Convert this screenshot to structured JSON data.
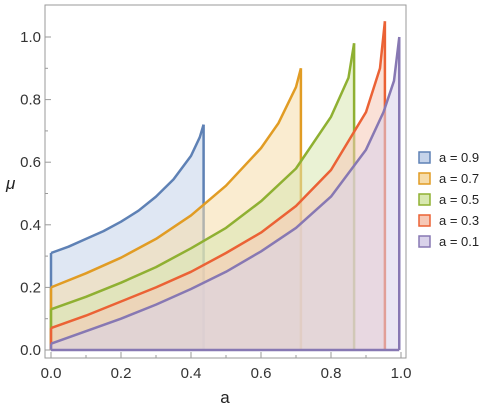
{
  "chart_data": {
    "type": "area",
    "xlabel": "a",
    "ylabel": "μ",
    "xlim": [
      0.0,
      1.0
    ],
    "ylim": [
      0.0,
      1.0
    ],
    "x_ticks": [
      "0.0",
      "0.2",
      "0.4",
      "0.6",
      "0.8",
      "1.0"
    ],
    "y_ticks": [
      "0.0",
      "0.2",
      "0.4",
      "0.6",
      "0.8",
      "1.0"
    ],
    "grid": false,
    "legend_position": "right",
    "series": [
      {
        "name": "a = 0.9",
        "color": "#5e81b5",
        "fill": "#c5d3ea",
        "upper": [
          [
            0.0,
            0.31
          ],
          [
            0.05,
            0.33
          ],
          [
            0.1,
            0.355
          ],
          [
            0.15,
            0.38
          ],
          [
            0.2,
            0.41
          ],
          [
            0.25,
            0.445
          ],
          [
            0.3,
            0.49
          ],
          [
            0.35,
            0.545
          ],
          [
            0.4,
            0.62
          ],
          [
            0.425,
            0.68
          ],
          [
            0.436,
            0.72
          ]
        ],
        "lower": [
          [
            0.0,
            0.0
          ],
          [
            0.436,
            0.0
          ]
        ]
      },
      {
        "name": "a = 0.7",
        "color": "#e19c24",
        "fill": "#f6dcaa",
        "upper": [
          [
            0.0,
            0.2
          ],
          [
            0.1,
            0.245
          ],
          [
            0.2,
            0.295
          ],
          [
            0.3,
            0.355
          ],
          [
            0.4,
            0.43
          ],
          [
            0.5,
            0.525
          ],
          [
            0.6,
            0.645
          ],
          [
            0.65,
            0.725
          ],
          [
            0.7,
            0.84
          ],
          [
            0.714,
            0.9
          ]
        ],
        "lower": [
          [
            0.0,
            0.0
          ],
          [
            0.714,
            0.0
          ]
        ]
      },
      {
        "name": "a = 0.5",
        "color": "#8fb032",
        "fill": "#d8e8b0",
        "upper": [
          [
            0.0,
            0.13
          ],
          [
            0.1,
            0.17
          ],
          [
            0.2,
            0.215
          ],
          [
            0.3,
            0.265
          ],
          [
            0.4,
            0.325
          ],
          [
            0.5,
            0.39
          ],
          [
            0.6,
            0.475
          ],
          [
            0.7,
            0.58
          ],
          [
            0.8,
            0.745
          ],
          [
            0.85,
            0.87
          ],
          [
            0.866,
            0.98
          ]
        ],
        "lower": [
          [
            0.0,
            0.0
          ],
          [
            0.866,
            0.0
          ]
        ]
      },
      {
        "name": "a = 0.3",
        "color": "#eb6235",
        "fill": "#f6c8b6",
        "upper": [
          [
            0.0,
            0.07
          ],
          [
            0.1,
            0.11
          ],
          [
            0.2,
            0.155
          ],
          [
            0.3,
            0.2
          ],
          [
            0.4,
            0.25
          ],
          [
            0.5,
            0.31
          ],
          [
            0.6,
            0.375
          ],
          [
            0.7,
            0.46
          ],
          [
            0.8,
            0.575
          ],
          [
            0.9,
            0.76
          ],
          [
            0.94,
            0.9
          ],
          [
            0.954,
            1.05
          ]
        ],
        "lower": [
          [
            0.0,
            0.0
          ],
          [
            0.954,
            0.0
          ]
        ]
      },
      {
        "name": "a = 0.1",
        "color": "#8778b3",
        "fill": "#d9d2ea",
        "upper": [
          [
            0.0,
            0.02
          ],
          [
            0.1,
            0.06
          ],
          [
            0.2,
            0.1
          ],
          [
            0.3,
            0.145
          ],
          [
            0.4,
            0.195
          ],
          [
            0.5,
            0.25
          ],
          [
            0.6,
            0.315
          ],
          [
            0.7,
            0.39
          ],
          [
            0.8,
            0.49
          ],
          [
            0.9,
            0.64
          ],
          [
            0.95,
            0.76
          ],
          [
            0.98,
            0.86
          ],
          [
            0.995,
            1.0
          ]
        ],
        "lower": [
          [
            0.0,
            0.0
          ],
          [
            0.995,
            0.0
          ]
        ]
      }
    ]
  }
}
